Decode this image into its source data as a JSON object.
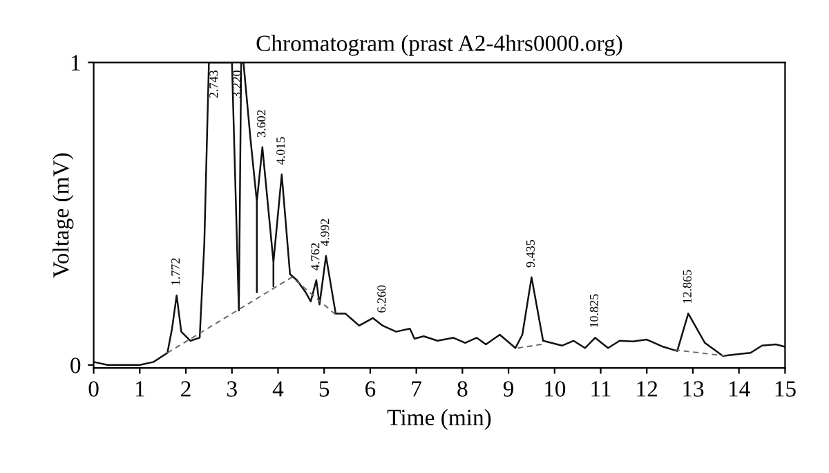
{
  "chart_data": {
    "type": "line",
    "title": "Chromatogram (prast A2-4hrs0000.org)",
    "xlabel": "Time (min)",
    "ylabel": "Voltage (mV)",
    "xlim": [
      0,
      15
    ],
    "xticks": [
      0,
      1,
      2,
      3,
      4,
      5,
      6,
      7,
      8,
      9,
      10,
      11,
      12,
      13,
      14,
      15
    ],
    "ylim": [
      -0.01,
      1
    ],
    "yticks": [
      0,
      1
    ],
    "grid": false,
    "legend": false,
    "marker": "none",
    "series": [
      {
        "color": "#111111",
        "line_style": "solid",
        "x": [
          0,
          0.3,
          0.6,
          1.0,
          1.3,
          1.6,
          1.7,
          1.8,
          1.9,
          2.1,
          2.3,
          2.4,
          2.5,
          2.8,
          3.0,
          3.15,
          3.2,
          3.25,
          3.4,
          3.54,
          3.54,
          3.54,
          3.66,
          3.9,
          3.9,
          3.9,
          4.08,
          4.26,
          4.41,
          4.6,
          4.71,
          4.83,
          4.9,
          5.04,
          5.25,
          5.46,
          5.76,
          6.06,
          6.27,
          6.56,
          6.86,
          6.96,
          7.16,
          7.46,
          7.8,
          8.06,
          8.31,
          8.51,
          8.81,
          9.15,
          9.3,
          9.5,
          9.75,
          10.16,
          10.41,
          10.66,
          10.88,
          11.16,
          11.41,
          11.7,
          12.0,
          12.36,
          12.66,
          12.9,
          13.26,
          13.65,
          14.06,
          14.25,
          14.5,
          14.8,
          15
        ],
        "values": [
          0.01,
          0.0,
          0.0,
          0.0,
          0.01,
          0.04,
          0.12,
          0.23,
          0.11,
          0.08,
          0.09,
          0.4,
          1,
          1,
          1,
          0.18,
          1,
          1,
          0.75,
          0.54,
          0.24,
          0.54,
          0.72,
          0.34,
          0.26,
          0.34,
          0.63,
          0.3,
          0.28,
          0.24,
          0.21,
          0.28,
          0.2,
          0.36,
          0.17,
          0.17,
          0.13,
          0.155,
          0.13,
          0.11,
          0.12,
          0.087,
          0.095,
          0.08,
          0.09,
          0.073,
          0.09,
          0.068,
          0.1,
          0.056,
          0.1,
          0.29,
          0.08,
          0.064,
          0.08,
          0.056,
          0.09,
          0.056,
          0.08,
          0.078,
          0.084,
          0.06,
          0.046,
          0.17,
          0.073,
          0.03,
          0.037,
          0.04,
          0.064,
          0.068,
          0.06
        ]
      },
      {
        "color": "#666666",
        "line_style": "dashed",
        "x": [
          1.6,
          4.3,
          5.3,
          5.31,
          9.2,
          9.8,
          9.81,
          12.6,
          13.7
        ],
        "values": [
          0.04,
          0.29,
          0.16,
          null,
          0.056,
          0.07,
          null,
          0.05,
          0.03
        ]
      }
    ],
    "annotations": [
      {
        "text": "1.772",
        "x": 1.8,
        "y": 0.23
      },
      {
        "text": "2.743",
        "x": 2.75,
        "y": 1
      },
      {
        "text": "3.220",
        "x": 3.25,
        "y": 1
      },
      {
        "text": "3.602",
        "x": 3.66,
        "y": 0.72
      },
      {
        "text": "4.015",
        "x": 4.08,
        "y": 0.63
      },
      {
        "text": "4.762",
        "x": 4.83,
        "y": 0.28
      },
      {
        "text": "4.992",
        "x": 5.04,
        "y": 0.36
      },
      {
        "text": "6.260",
        "x": 6.27,
        "y": 0.14
      },
      {
        "text": "9.435",
        "x": 9.5,
        "y": 0.29
      },
      {
        "text": "10.825",
        "x": 10.88,
        "y": 0.09
      },
      {
        "text": "12.865",
        "x": 12.9,
        "y": 0.17
      }
    ]
  }
}
